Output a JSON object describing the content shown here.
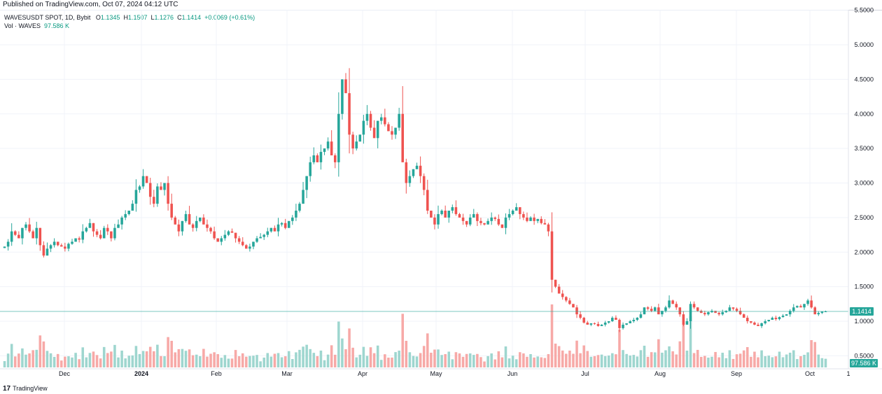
{
  "header": {
    "published": "Published on TradingView.com, Oct 07, 2024 04:12 UTC"
  },
  "legend": {
    "symbol": "WAVESUSDT SPOT, 1D, Bybit",
    "o_label": "O",
    "o_value": "1.1345",
    "h_label": "H",
    "h_value": "1.1507",
    "l_label": "L",
    "l_value": "1.1276",
    "c_label": "C",
    "c_value": "1.1414",
    "change": "+0.0069 (+0.61%)",
    "vol_label": "Vol · WAVES",
    "vol_value": "97.586 K"
  },
  "footer": {
    "logo_text": "TradingView",
    "logo_mark": "17"
  },
  "colors": {
    "up": "#26a69a",
    "down": "#ef5350",
    "vol_up": "#9ed6cf",
    "vol_down": "#f7a9a7",
    "price_badge": "#26a69a",
    "grid": "#f0f3fa"
  },
  "chart_data": {
    "type": "candlestick",
    "symbol": "WAVESUSDT SPOT",
    "interval": "1D",
    "exchange": "Bybit",
    "x_ticks": [
      "Dec",
      "2024",
      "Feb",
      "Mar",
      "Apr",
      "May",
      "Jun",
      "Jul",
      "Aug",
      "Sep",
      "Oct",
      "1"
    ],
    "y_ticks": [
      "5.5000",
      "5.0000",
      "4.5000",
      "4.0000",
      "3.5000",
      "3.0000",
      "2.5000",
      "2.0000",
      "1.5000",
      "1.0000",
      "0.5000"
    ],
    "y_tick_values": [
      5.5,
      5.0,
      4.5,
      4.0,
      3.5,
      3.0,
      2.5,
      2.0,
      1.5,
      1.0,
      0.5
    ],
    "ylim": [
      0.25,
      5.5
    ],
    "last_price": "1.1414",
    "last_volume": "97.586 K",
    "grid": true,
    "close_series": [
      2.08,
      2.15,
      2.3,
      2.25,
      2.2,
      2.35,
      2.4,
      2.3,
      2.2,
      2.35,
      2.1,
      1.95,
      2.05,
      2.1,
      2.15,
      2.1,
      2.08,
      2.05,
      2.12,
      2.15,
      2.2,
      2.18,
      2.3,
      2.35,
      2.42,
      2.3,
      2.25,
      2.2,
      2.35,
      2.3,
      2.2,
      2.35,
      2.4,
      2.5,
      2.55,
      2.6,
      2.7,
      2.9,
      2.95,
      3.1,
      3.0,
      2.8,
      2.7,
      2.95,
      2.9,
      3.0,
      2.7,
      2.5,
      2.4,
      2.3,
      2.45,
      2.55,
      2.4,
      2.35,
      2.45,
      2.5,
      2.4,
      2.35,
      2.3,
      2.2,
      2.15,
      2.2,
      2.25,
      2.3,
      2.28,
      2.2,
      2.15,
      2.1,
      2.05,
      2.08,
      2.15,
      2.2,
      2.22,
      2.25,
      2.3,
      2.35,
      2.3,
      2.4,
      2.42,
      2.35,
      2.45,
      2.5,
      2.6,
      2.7,
      2.9,
      3.1,
      3.3,
      3.4,
      3.3,
      3.45,
      3.5,
      3.6,
      3.4,
      3.3,
      4.0,
      4.5,
      4.3,
      3.7,
      3.5,
      3.6,
      3.7,
      3.9,
      4.0,
      3.8,
      3.65,
      3.9,
      3.95,
      3.85,
      3.75,
      3.7,
      3.8,
      4.0,
      3.3,
      3.0,
      3.1,
      3.2,
      3.25,
      3.1,
      2.9,
      2.6,
      2.5,
      2.4,
      2.55,
      2.6,
      2.5,
      2.6,
      2.65,
      2.55,
      2.5,
      2.45,
      2.4,
      2.5,
      2.55,
      2.45,
      2.42,
      2.4,
      2.45,
      2.5,
      2.48,
      2.4,
      2.35,
      2.5,
      2.55,
      2.6,
      2.65,
      2.55,
      2.5,
      2.45,
      2.5,
      2.45,
      2.48,
      2.42,
      2.4,
      2.3,
      1.6,
      1.5,
      1.4,
      1.35,
      1.3,
      1.25,
      1.2,
      1.1,
      1.05,
      0.98,
      0.95,
      0.97,
      0.96,
      0.93,
      0.95,
      0.98,
      1.0,
      1.05,
      1.02,
      0.9,
      0.95,
      0.97,
      1.0,
      1.02,
      1.05,
      1.1,
      1.2,
      1.18,
      1.15,
      1.2,
      1.1,
      1.15,
      1.2,
      1.3,
      1.25,
      1.2,
      1.1,
      0.95,
      1.0,
      1.25,
      1.2,
      1.15,
      1.12,
      1.1,
      1.13,
      1.15,
      1.12,
      1.1,
      1.13,
      1.15,
      1.2,
      1.18,
      1.15,
      1.1,
      1.05,
      1.0,
      0.98,
      0.95,
      0.93,
      0.97,
      1.0,
      1.02,
      1.05,
      1.03,
      1.06,
      1.08,
      1.1,
      1.15,
      1.2,
      1.22,
      1.2,
      1.25,
      1.3,
      1.2,
      1.1,
      1.12,
      1.14,
      1.1414
    ]
  }
}
